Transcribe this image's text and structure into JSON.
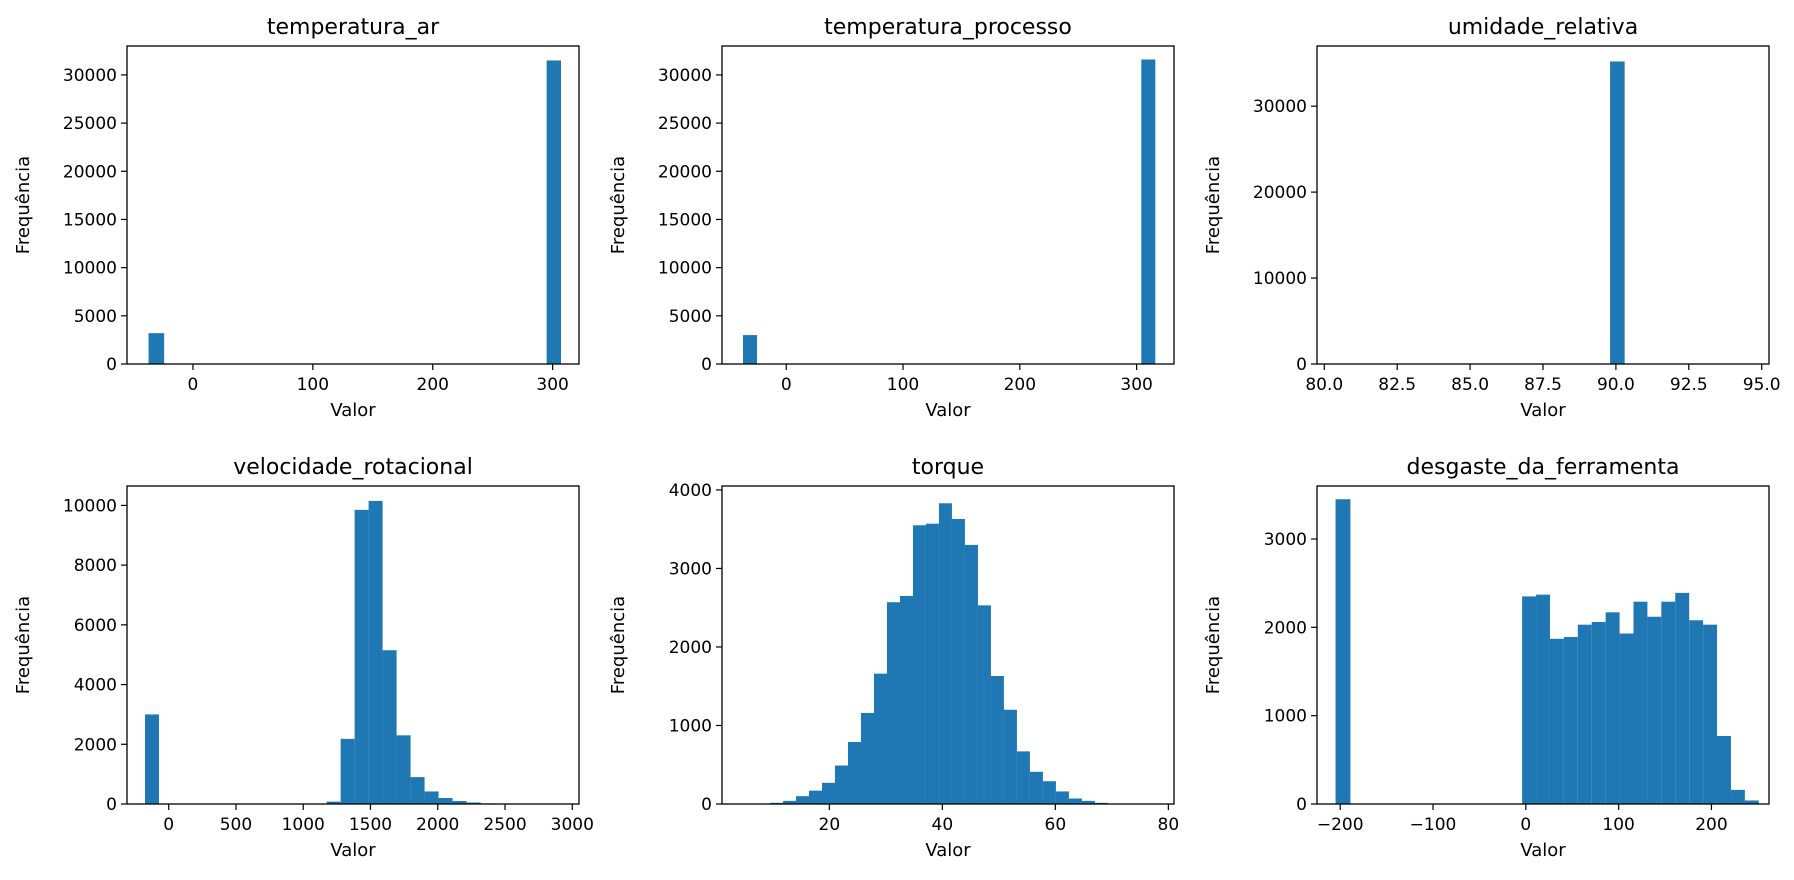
{
  "bar_color": "#1f77b4",
  "chart_data": [
    {
      "type": "bar",
      "title": "temperatura_ar",
      "xlabel": "Valor",
      "ylabel": "Frequência",
      "xlim": [
        -55,
        322
      ],
      "ylim": [
        0,
        33000
      ],
      "xticks": [
        0,
        100,
        200,
        300
      ],
      "yticks": [
        0,
        5000,
        10000,
        15000,
        20000,
        25000,
        30000
      ],
      "bins": [
        {
          "x0": -37,
          "x1": -24,
          "y": 3200
        },
        {
          "x0": 295,
          "x1": 307,
          "y": 31500
        }
      ]
    },
    {
      "type": "bar",
      "title": "temperatura_processo",
      "xlabel": "Valor",
      "ylabel": "Frequência",
      "xlim": [
        -55,
        332
      ],
      "ylim": [
        0,
        33000
      ],
      "xticks": [
        0,
        100,
        200,
        300
      ],
      "yticks": [
        0,
        5000,
        10000,
        15000,
        20000,
        25000,
        30000
      ],
      "bins": [
        {
          "x0": -37,
          "x1": -25,
          "y": 3000
        },
        {
          "x0": 304,
          "x1": 316,
          "y": 31600
        }
      ]
    },
    {
      "type": "bar",
      "title": "umidade_relativa",
      "xlabel": "Valor",
      "ylabel": "Frequência",
      "xlim": [
        79.75,
        95.25
      ],
      "ylim": [
        0,
        37000
      ],
      "xticks": [
        80.0,
        82.5,
        85.0,
        87.5,
        90.0,
        92.5,
        95.0
      ],
      "xtick_labels": [
        "80.0",
        "82.5",
        "85.0",
        "87.5",
        "90.0",
        "92.5",
        "95.0"
      ],
      "yticks": [
        0,
        10000,
        20000,
        30000
      ],
      "bins": [
        {
          "x0": 89.8,
          "x1": 90.3,
          "y": 35200
        }
      ]
    },
    {
      "type": "bar",
      "title": "velocidade_rotacional",
      "xlabel": "Valor",
      "ylabel": "Frequência",
      "xlim": [
        -310,
        3050
      ],
      "ylim": [
        0,
        10650
      ],
      "xticks": [
        0,
        500,
        1000,
        1500,
        2000,
        2500,
        3000
      ],
      "yticks": [
        0,
        2000,
        4000,
        6000,
        8000,
        10000
      ],
      "bins": [
        {
          "x0": -176,
          "x1": -72,
          "y": 3000
        },
        {
          "x0": 1174,
          "x1": 1278,
          "y": 80
        },
        {
          "x0": 1278,
          "x1": 1382,
          "y": 2180
        },
        {
          "x0": 1382,
          "x1": 1486,
          "y": 9850
        },
        {
          "x0": 1486,
          "x1": 1590,
          "y": 10150
        },
        {
          "x0": 1590,
          "x1": 1694,
          "y": 5150
        },
        {
          "x0": 1694,
          "x1": 1798,
          "y": 2300
        },
        {
          "x0": 1798,
          "x1": 1902,
          "y": 900
        },
        {
          "x0": 1902,
          "x1": 2006,
          "y": 420
        },
        {
          "x0": 2006,
          "x1": 2110,
          "y": 200
        },
        {
          "x0": 2110,
          "x1": 2214,
          "y": 100
        },
        {
          "x0": 2214,
          "x1": 2318,
          "y": 50
        },
        {
          "x0": 2318,
          "x1": 2422,
          "y": 20
        },
        {
          "x0": 2422,
          "x1": 2526,
          "y": 10
        },
        {
          "x0": 2526,
          "x1": 2630,
          "y": 6
        },
        {
          "x0": 2630,
          "x1": 2734,
          "y": 4
        },
        {
          "x0": 2734,
          "x1": 2838,
          "y": 2
        }
      ]
    },
    {
      "type": "bar",
      "title": "torque",
      "xlabel": "Valor",
      "ylabel": "Frequência",
      "xlim": [
        1,
        81
      ],
      "ylim": [
        0,
        4050
      ],
      "xticks": [
        20,
        40,
        60,
        80
      ],
      "yticks": [
        0,
        1000,
        2000,
        3000,
        4000
      ],
      "bins": [
        {
          "x0": 9.5,
          "x1": 11.8,
          "y": 15
        },
        {
          "x0": 11.8,
          "x1": 14.1,
          "y": 40
        },
        {
          "x0": 14.1,
          "x1": 16.4,
          "y": 100
        },
        {
          "x0": 16.4,
          "x1": 18.7,
          "y": 170
        },
        {
          "x0": 18.7,
          "x1": 21.0,
          "y": 270
        },
        {
          "x0": 21.0,
          "x1": 23.3,
          "y": 490
        },
        {
          "x0": 23.3,
          "x1": 25.6,
          "y": 790
        },
        {
          "x0": 25.6,
          "x1": 27.9,
          "y": 1160
        },
        {
          "x0": 27.9,
          "x1": 30.2,
          "y": 1660
        },
        {
          "x0": 30.2,
          "x1": 32.5,
          "y": 2570
        },
        {
          "x0": 32.5,
          "x1": 34.8,
          "y": 2650
        },
        {
          "x0": 34.8,
          "x1": 37.1,
          "y": 3550
        },
        {
          "x0": 37.1,
          "x1": 39.4,
          "y": 3570
        },
        {
          "x0": 39.4,
          "x1": 41.7,
          "y": 3830
        },
        {
          "x0": 41.7,
          "x1": 44.0,
          "y": 3630
        },
        {
          "x0": 44.0,
          "x1": 46.3,
          "y": 3300
        },
        {
          "x0": 46.3,
          "x1": 48.6,
          "y": 2530
        },
        {
          "x0": 48.6,
          "x1": 50.9,
          "y": 1630
        },
        {
          "x0": 50.9,
          "x1": 53.2,
          "y": 1200
        },
        {
          "x0": 53.2,
          "x1": 55.5,
          "y": 670
        },
        {
          "x0": 55.5,
          "x1": 57.8,
          "y": 410
        },
        {
          "x0": 57.8,
          "x1": 60.1,
          "y": 290
        },
        {
          "x0": 60.1,
          "x1": 62.4,
          "y": 160
        },
        {
          "x0": 62.4,
          "x1": 64.7,
          "y": 70
        },
        {
          "x0": 64.7,
          "x1": 67.0,
          "y": 40
        },
        {
          "x0": 67.0,
          "x1": 69.3,
          "y": 15
        },
        {
          "x0": 69.3,
          "x1": 71.6,
          "y": 5
        }
      ]
    },
    {
      "type": "bar",
      "title": "desgaste_da_ferramenta",
      "xlabel": "Valor",
      "ylabel": "Frequência",
      "xlim": [
        -225,
        262
      ],
      "ylim": [
        0,
        3600
      ],
      "xticks": [
        -200,
        -100,
        0,
        100,
        200
      ],
      "xtick_labels": [
        "−200",
        "−100",
        "0",
        "100",
        "200"
      ],
      "yticks": [
        0,
        1000,
        2000,
        3000
      ],
      "bins": [
        {
          "x0": -205,
          "x1": -189,
          "y": 3450
        },
        {
          "x0": -4,
          "x1": 11,
          "y": 2350
        },
        {
          "x0": 11,
          "x1": 26,
          "y": 2370
        },
        {
          "x0": 26,
          "x1": 41,
          "y": 1870
        },
        {
          "x0": 41,
          "x1": 56,
          "y": 1890
        },
        {
          "x0": 56,
          "x1": 71,
          "y": 2030
        },
        {
          "x0": 71,
          "x1": 86,
          "y": 2060
        },
        {
          "x0": 86,
          "x1": 101,
          "y": 2170
        },
        {
          "x0": 101,
          "x1": 116,
          "y": 1930
        },
        {
          "x0": 116,
          "x1": 131,
          "y": 2290
        },
        {
          "x0": 131,
          "x1": 146,
          "y": 2120
        },
        {
          "x0": 146,
          "x1": 161,
          "y": 2290
        },
        {
          "x0": 161,
          "x1": 176,
          "y": 2390
        },
        {
          "x0": 176,
          "x1": 191,
          "y": 2080
        },
        {
          "x0": 191,
          "x1": 206,
          "y": 2030
        },
        {
          "x0": 206,
          "x1": 221,
          "y": 770
        },
        {
          "x0": 221,
          "x1": 236,
          "y": 160
        },
        {
          "x0": 236,
          "x1": 251,
          "y": 40
        }
      ]
    }
  ]
}
